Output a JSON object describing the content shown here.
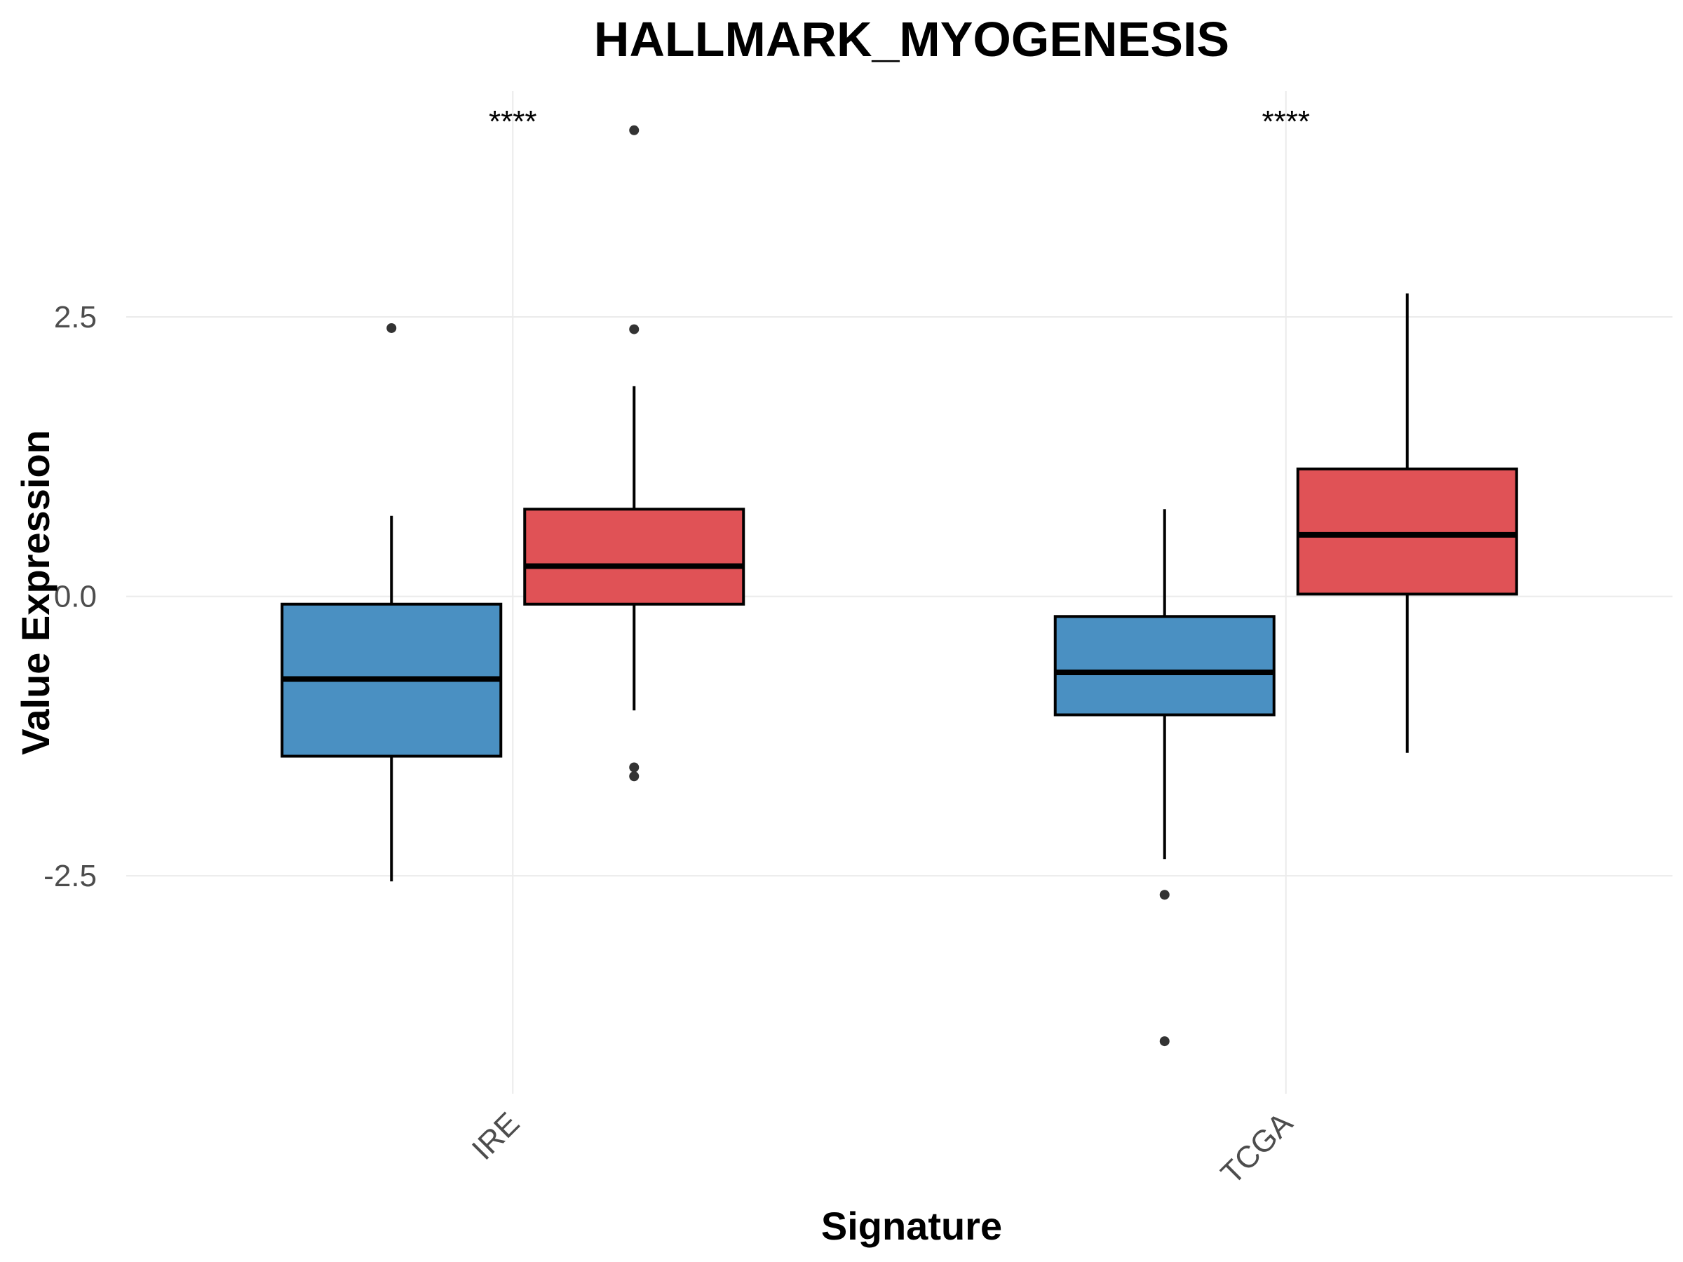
{
  "chart_data": {
    "type": "boxplot",
    "title": "HALLMARK_MYOGENESIS",
    "xlabel": "Signature",
    "ylabel": "Value Expression",
    "categories": [
      "IRE",
      "TCGA"
    ],
    "yticks": [
      -2.5,
      0.0,
      2.5
    ],
    "ytick_labels": [
      "-2.5",
      "0.0",
      "2.5"
    ],
    "ylim": [
      -4.45,
      4.52
    ],
    "grid": true,
    "legend": "none",
    "series": [
      {
        "color": "#4A90C2",
        "boxes": [
          {
            "category": "IRE",
            "whisker_low": -2.55,
            "q1": -1.43,
            "median": -0.74,
            "q3": -0.07,
            "whisker_high": 0.72,
            "outliers": [
              2.4
            ]
          },
          {
            "category": "TCGA",
            "whisker_low": -2.35,
            "q1": -1.06,
            "median": -0.68,
            "q3": -0.18,
            "whisker_high": 0.78,
            "outliers": [
              -2.67,
              -3.98
            ]
          }
        ]
      },
      {
        "color": "#E05256",
        "boxes": [
          {
            "category": "IRE",
            "whisker_low": -1.02,
            "q1": -0.07,
            "median": 0.27,
            "q3": 0.78,
            "whisker_high": 1.88,
            "outliers": [
              4.17,
              2.39,
              -1.53,
              -1.61
            ]
          },
          {
            "category": "TCGA",
            "whisker_low": -1.4,
            "q1": 0.02,
            "median": 0.55,
            "q3": 1.14,
            "whisker_high": 2.71,
            "outliers": []
          }
        ]
      }
    ],
    "annotations": [
      {
        "category": "IRE",
        "text": "****"
      },
      {
        "category": "TCGA",
        "text": "****"
      }
    ]
  }
}
